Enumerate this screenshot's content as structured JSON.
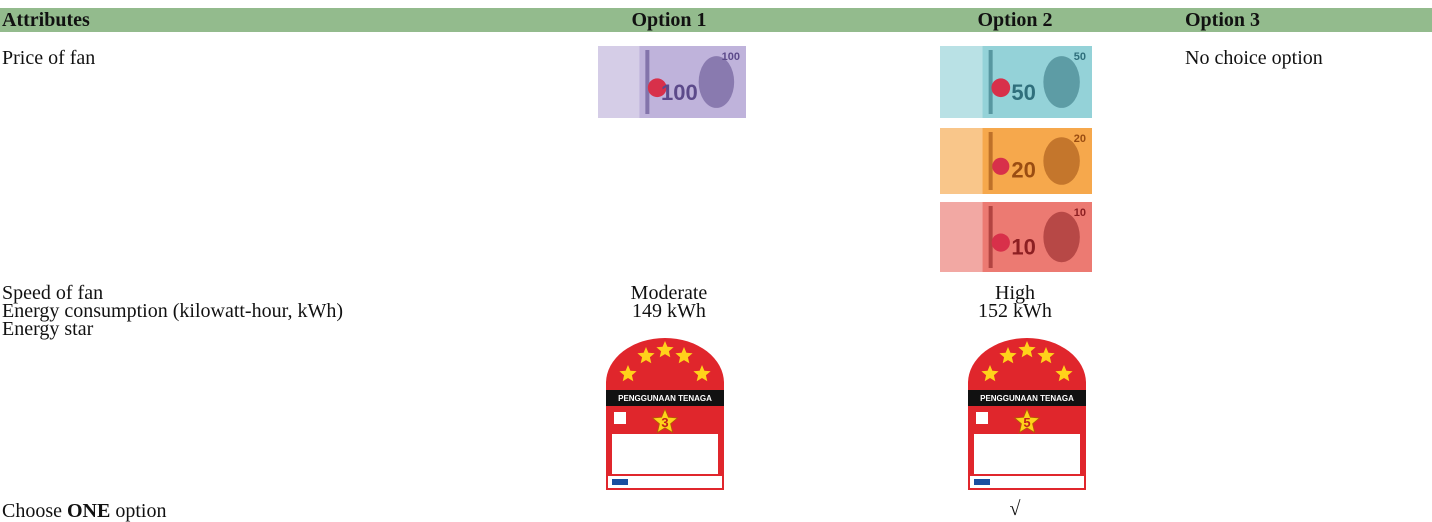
{
  "table": {
    "header": [
      "Attributes",
      "Option 1",
      "Option 2",
      "Option 3"
    ],
    "price": {
      "label": "Price of fan",
      "option1_notes": [
        "100"
      ],
      "option2_notes": [
        "50",
        "20",
        "10"
      ],
      "option3": "No choice option"
    },
    "speed": {
      "label": "Speed of fan",
      "option1": "Moderate",
      "option2": "High"
    },
    "energy": {
      "label": "Energy consumption (kilowatt-hour, kWh)",
      "option1": "149 kWh",
      "option2": "152 kWh"
    },
    "star": {
      "label": "Energy star",
      "option1_label": {
        "title": "PENGGUNAAN TENAGA",
        "rating": "3"
      },
      "option2_label": {
        "title": "PENGGUNAAN TENAGA",
        "rating": "5"
      }
    },
    "choose": {
      "parts": [
        "Choose",
        "ONE",
        "option"
      ],
      "option2": "√"
    }
  }
}
